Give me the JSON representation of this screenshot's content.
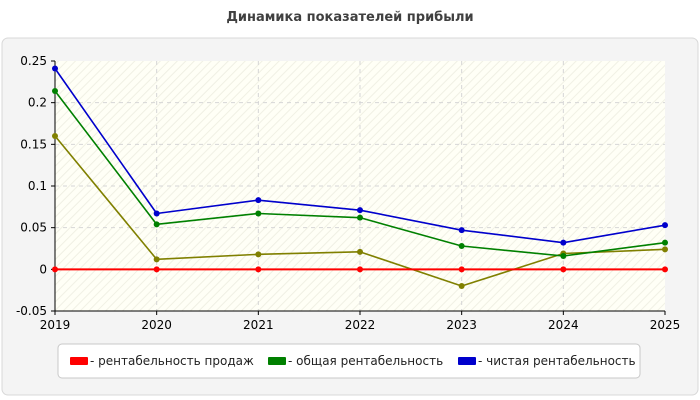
{
  "chart_data": {
    "type": "line",
    "title": "Динамика показателей прибыли",
    "x": [
      "2019",
      "2020",
      "2021",
      "2022",
      "2023",
      "2024",
      "2025"
    ],
    "ylim": [
      -0.05,
      0.25
    ],
    "yticks": [
      "-0.05",
      "0",
      "0.05",
      "0.1",
      "0.15",
      "0.2",
      "0.25"
    ],
    "grid": true,
    "legend_position": "bottom",
    "series": [
      {
        "name": "- рентабельность продаж",
        "color": "#ff0000",
        "values": [
          0,
          0,
          0,
          0,
          0,
          0,
          0
        ]
      },
      {
        "name": "",
        "color": "#808000",
        "values": [
          0.16,
          0.012,
          0.018,
          0.021,
          -0.02,
          0.019,
          0.024
        ]
      },
      {
        "name": "- общая рентабельность",
        "color": "#008000",
        "values": [
          0.214,
          0.054,
          0.067,
          0.062,
          0.028,
          0.016,
          0.032
        ]
      },
      {
        "name": "- чистая рентабельность",
        "color": "#0000cc",
        "values": [
          0.241,
          0.067,
          0.083,
          0.071,
          0.047,
          0.032,
          0.053
        ]
      }
    ]
  }
}
